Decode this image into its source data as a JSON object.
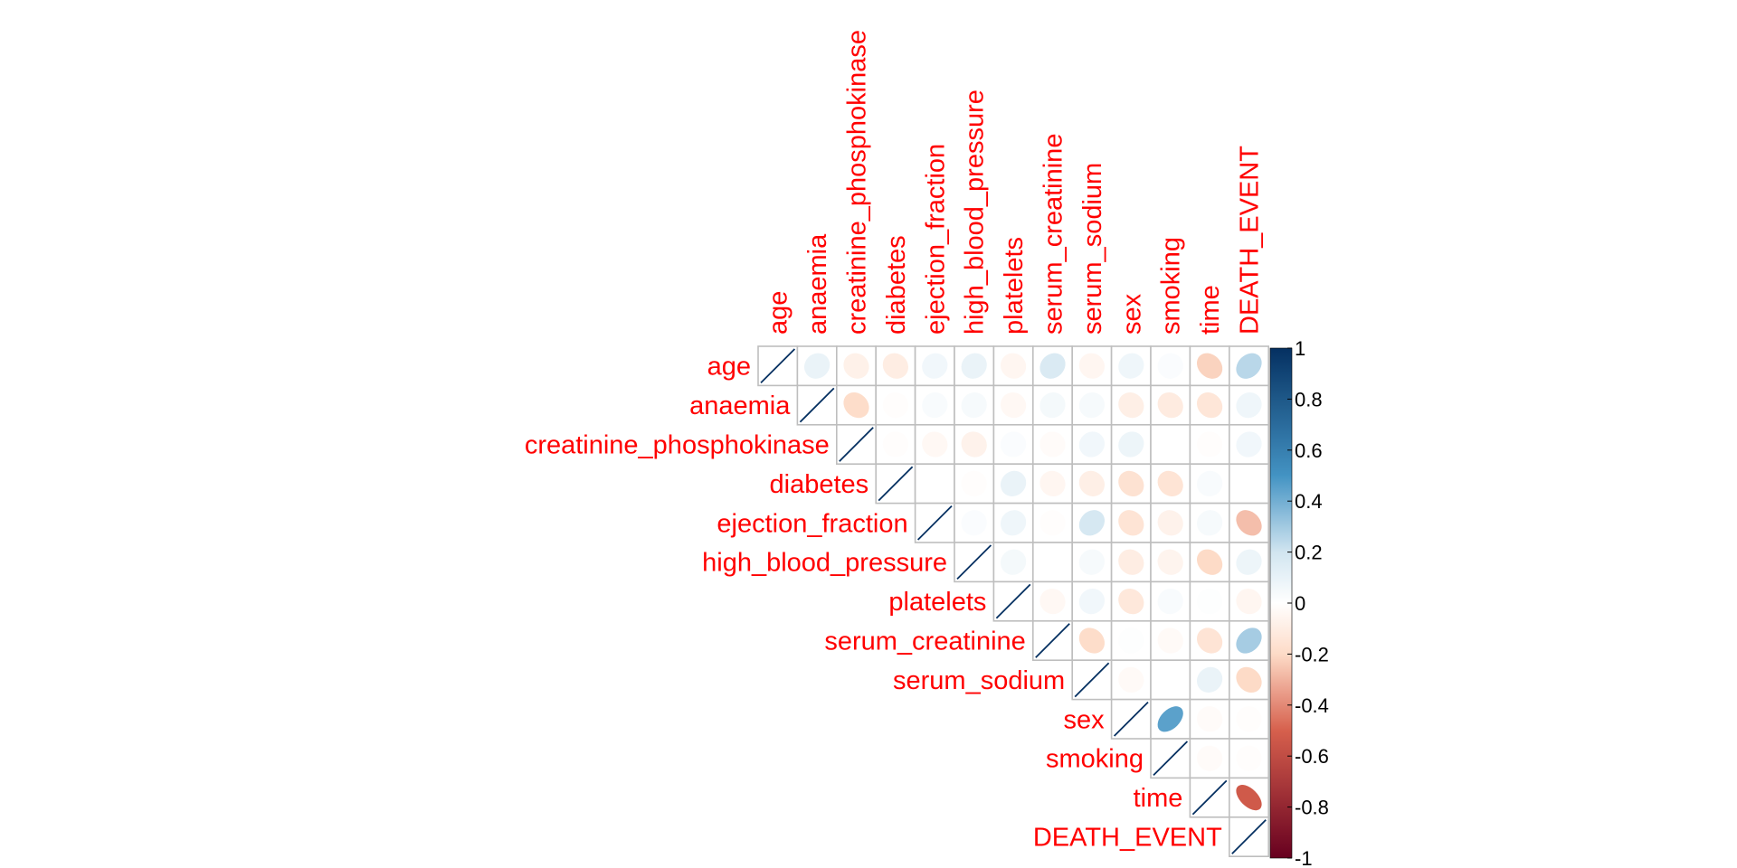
{
  "chart_data": {
    "type": "heatmap",
    "subtype": "correlation-matrix-upper-ellipse",
    "title": "",
    "variables": [
      "age",
      "anaemia",
      "creatinine_phosphokinase",
      "diabetes",
      "ejection_fraction",
      "high_blood_pressure",
      "platelets",
      "serum_creatinine",
      "serum_sodium",
      "sex",
      "smoking",
      "time",
      "DEATH_EVENT"
    ],
    "matrix": [
      [
        1,
        0.09,
        -0.08,
        -0.1,
        0.06,
        0.09,
        -0.05,
        0.16,
        -0.05,
        0.07,
        0.02,
        -0.22,
        0.25
      ],
      [
        0.09,
        1,
        -0.19,
        -0.01,
        0.03,
        0.04,
        -0.04,
        0.05,
        0.04,
        -0.09,
        -0.11,
        -0.14,
        0.07
      ],
      [
        -0.08,
        -0.19,
        1,
        -0.01,
        -0.04,
        -0.07,
        0.02,
        -0.02,
        0.06,
        0.08,
        0.0,
        -0.01,
        0.06
      ],
      [
        -0.1,
        -0.01,
        -0.01,
        1,
        0.0,
        -0.01,
        0.09,
        -0.05,
        -0.09,
        -0.16,
        -0.15,
        0.03,
        0.0
      ],
      [
        0.06,
        0.03,
        -0.04,
        0.0,
        1,
        0.02,
        0.07,
        -0.01,
        0.18,
        -0.15,
        -0.07,
        0.04,
        -0.27
      ],
      [
        0.09,
        0.04,
        -0.07,
        -0.01,
        0.02,
        1,
        0.05,
        0.0,
        0.04,
        -0.1,
        -0.06,
        -0.2,
        0.08
      ],
      [
        -0.05,
        -0.04,
        0.02,
        0.09,
        0.07,
        0.05,
        1,
        -0.04,
        0.06,
        -0.13,
        0.03,
        0.01,
        -0.05
      ],
      [
        0.16,
        0.05,
        -0.02,
        -0.05,
        -0.01,
        0.0,
        -0.04,
        1,
        -0.19,
        0.01,
        -0.03,
        -0.15,
        0.29
      ],
      [
        -0.05,
        0.04,
        0.06,
        -0.09,
        0.18,
        0.04,
        0.06,
        -0.19,
        1,
        -0.03,
        0.0,
        0.09,
        -0.2
      ],
      [
        0.07,
        -0.09,
        0.08,
        -0.16,
        -0.15,
        -0.1,
        -0.13,
        0.01,
        -0.03,
        1,
        0.45,
        -0.02,
        -0.01
      ],
      [
        0.02,
        -0.11,
        0.0,
        -0.15,
        -0.07,
        -0.06,
        0.03,
        -0.03,
        0.0,
        0.45,
        1,
        -0.02,
        -0.01
      ],
      [
        -0.22,
        -0.14,
        -0.01,
        0.03,
        0.04,
        -0.2,
        0.01,
        -0.15,
        0.09,
        -0.02,
        -0.02,
        1,
        -0.53
      ],
      [
        0.25,
        0.07,
        0.06,
        0.0,
        -0.27,
        0.08,
        -0.05,
        0.29,
        -0.2,
        -0.01,
        -0.01,
        -0.53,
        1
      ]
    ],
    "colorbar": {
      "range": [
        -1,
        1
      ],
      "ticks": [
        "1",
        "0.8",
        "0.6",
        "0.4",
        "0.2",
        "0",
        "-0.2",
        "-0.4",
        "-0.6",
        "-0.8",
        "-1"
      ],
      "colors": {
        "neg_end": "#67001F",
        "neg_mid": "#D6604D",
        "neg_light": "#FDDBC7",
        "zero": "#FFFFFF",
        "pos_light": "#D1E5F0",
        "pos_mid": "#4393C3",
        "pos_end": "#053061"
      }
    },
    "label_color": "#FF0000",
    "grid_color": "#BEBEBE"
  }
}
